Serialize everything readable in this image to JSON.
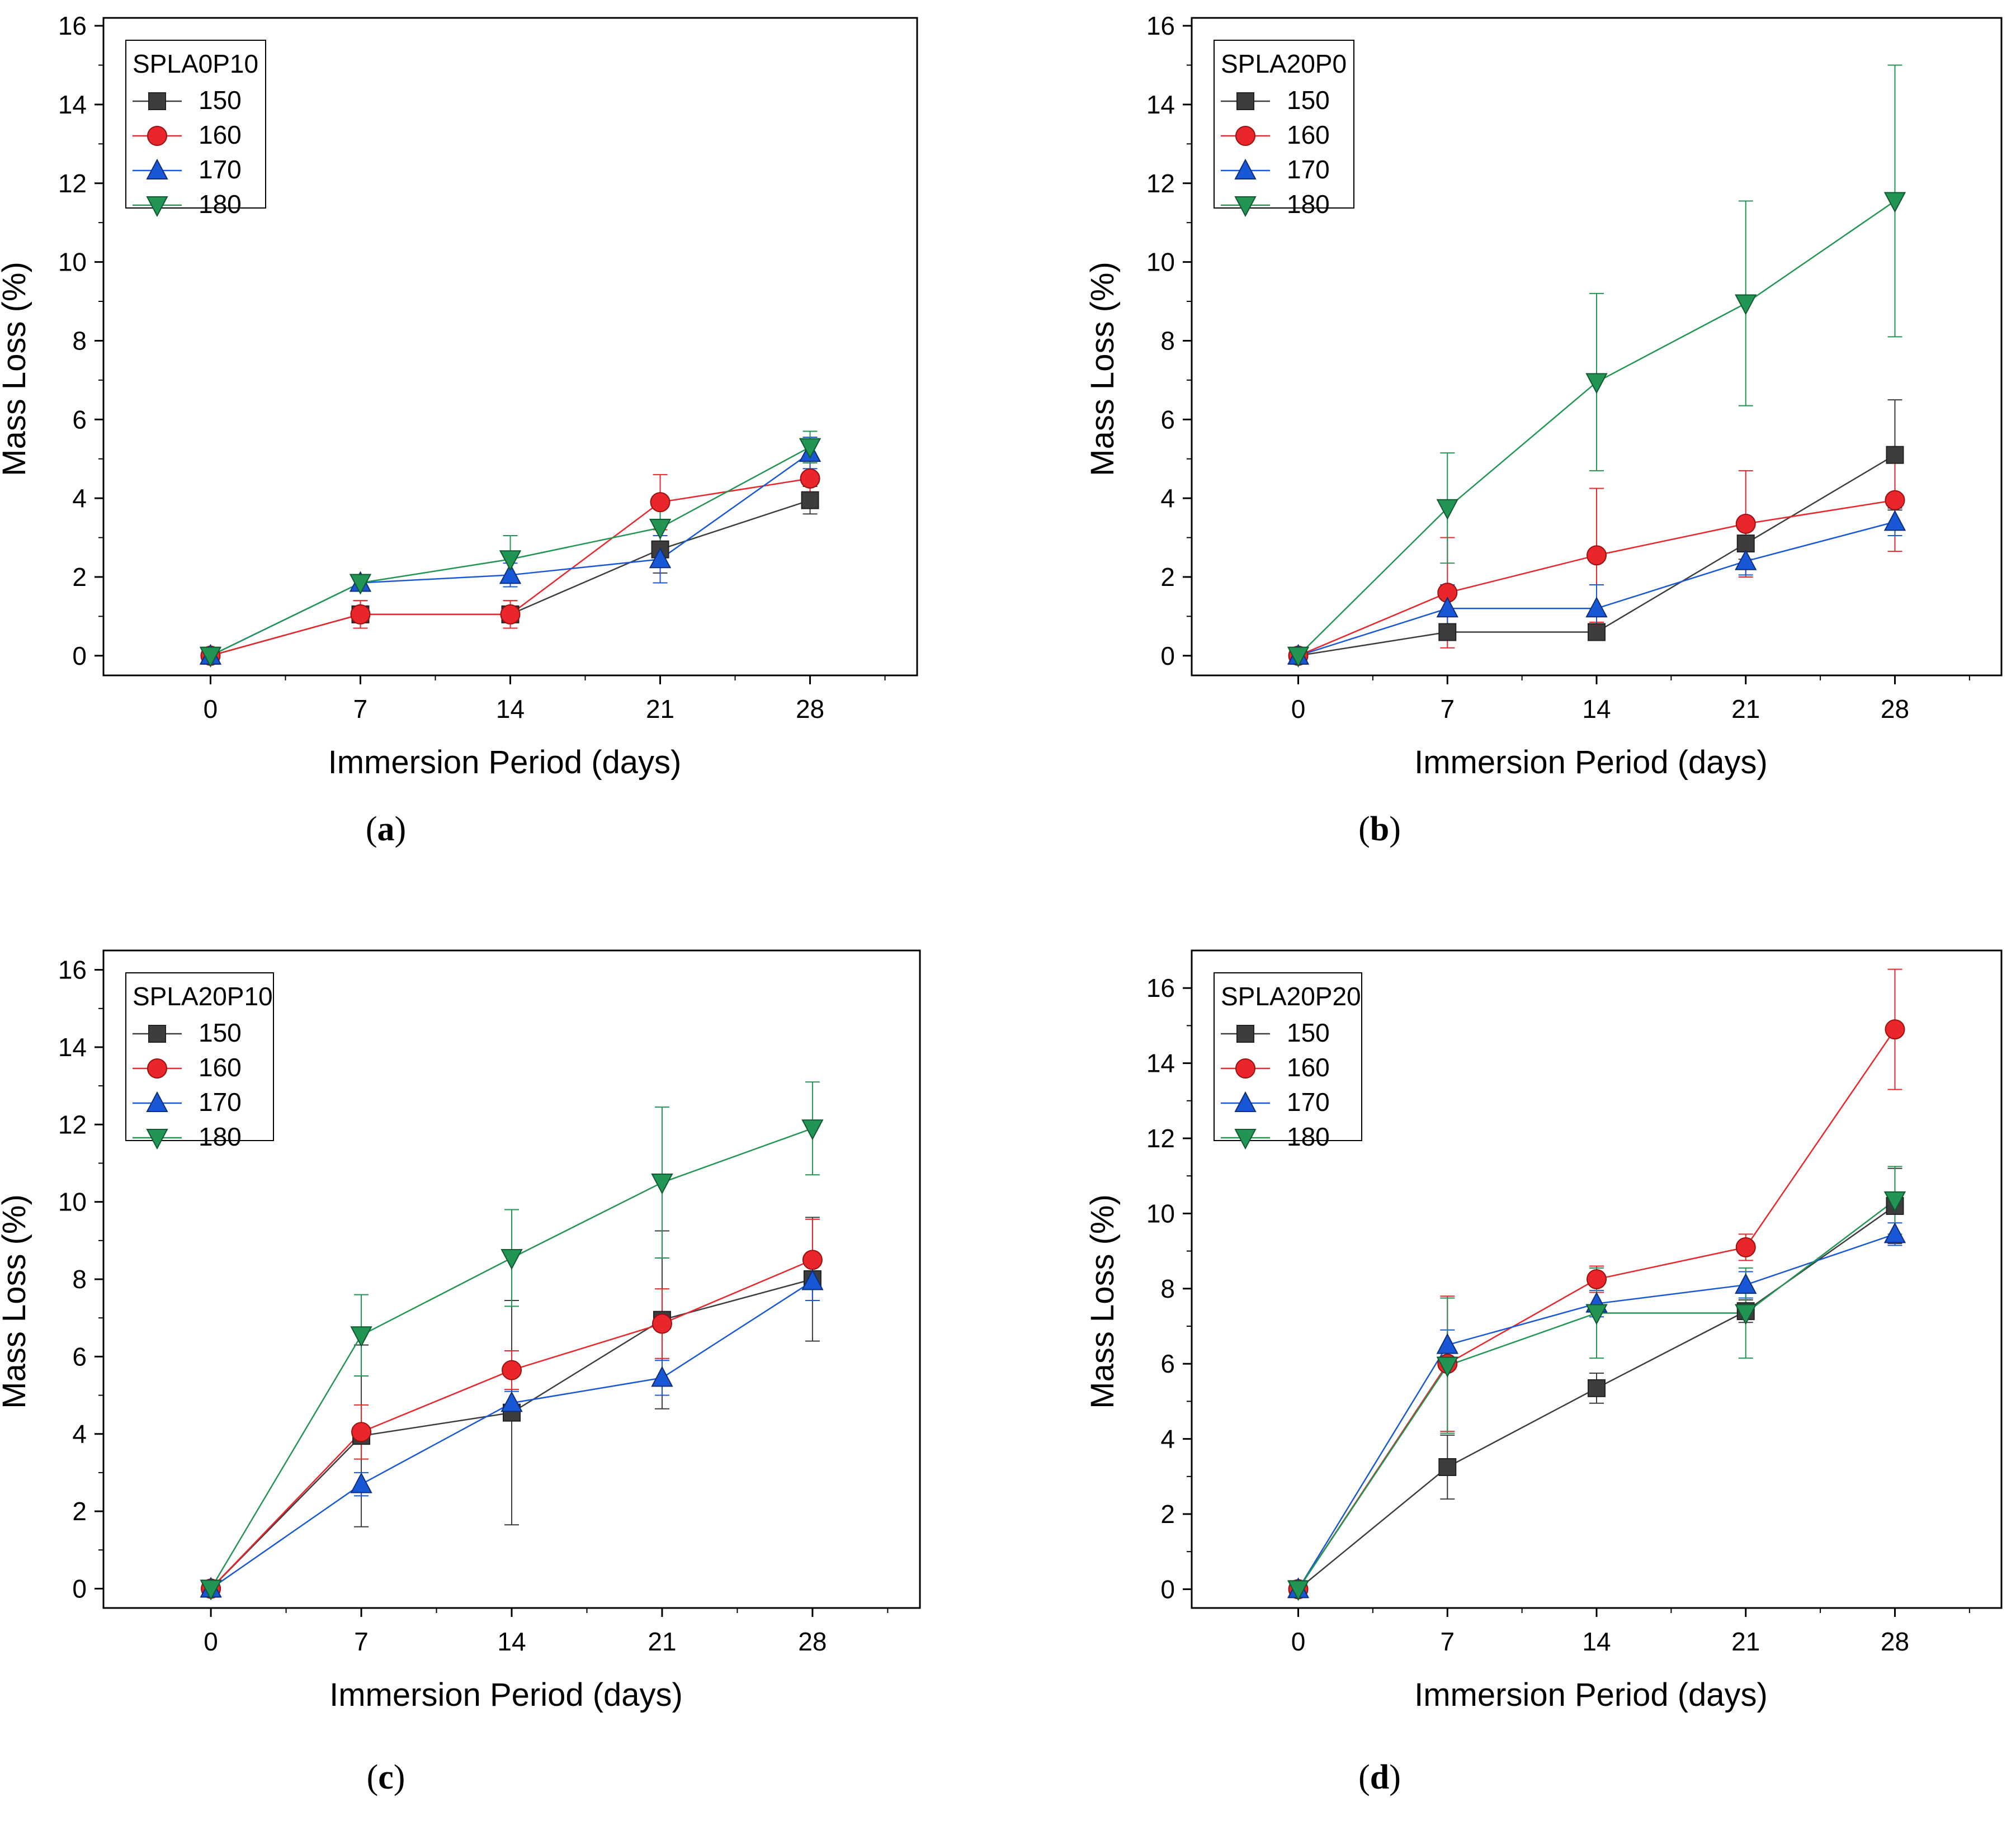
{
  "chart_data": [
    {
      "type": "line",
      "panel": "a",
      "caption": "a",
      "legend_title": "SPLA0P10",
      "xlabel": "Immersion Period (days)",
      "ylabel": "Mass Loss (%)",
      "xlim": [
        -5,
        33
      ],
      "ylim": [
        -0.5,
        16.2
      ],
      "x_ticks": [
        0,
        7,
        14,
        21,
        28
      ],
      "y_ticks": [
        0,
        2,
        4,
        6,
        8,
        10,
        12,
        14,
        16
      ],
      "x": [
        0,
        7,
        14,
        21,
        28
      ],
      "legend_position": "top-left",
      "series": [
        {
          "name": "150",
          "color": "#3d3d3d",
          "marker": "square",
          "values": [
            0,
            1.05,
            1.05,
            2.7,
            3.95
          ],
          "errors": [
            0,
            0.35,
            0.35,
            0.6,
            0.35
          ]
        },
        {
          "name": "160",
          "color": "#e8262b",
          "marker": "circle",
          "values": [
            0,
            1.05,
            1.05,
            3.9,
            4.5
          ],
          "errors": [
            0,
            0.35,
            0.35,
            0.7,
            0.4
          ]
        },
        {
          "name": "170",
          "color": "#1857d6",
          "marker": "triangle-up",
          "values": [
            0,
            1.85,
            2.05,
            2.45,
            5.15
          ],
          "errors": [
            0,
            0.2,
            0.3,
            0.6,
            0.4
          ]
        },
        {
          "name": "180",
          "color": "#229554",
          "marker": "triangle-down",
          "values": [
            0,
            1.85,
            2.45,
            3.25,
            5.3
          ],
          "errors": [
            0,
            0.2,
            0.6,
            0.6,
            0.4
          ]
        }
      ]
    },
    {
      "type": "line",
      "panel": "b",
      "caption": "b",
      "legend_title": "SPLA20P0",
      "xlabel": "Immersion Period (days)",
      "ylabel": "Mass Loss (%)",
      "xlim": [
        -5,
        33
      ],
      "ylim": [
        -0.5,
        16.2
      ],
      "x_ticks": [
        0,
        7,
        14,
        21,
        28
      ],
      "y_ticks": [
        0,
        2,
        4,
        6,
        8,
        10,
        12,
        14,
        16
      ],
      "x": [
        0,
        7,
        14,
        21,
        28
      ],
      "legend_position": "top-left",
      "series": [
        {
          "name": "150",
          "color": "#3d3d3d",
          "marker": "square",
          "values": [
            0,
            0.6,
            0.6,
            2.85,
            5.1
          ],
          "errors": [
            0,
            0.2,
            0.2,
            0.4,
            1.4
          ]
        },
        {
          "name": "160",
          "color": "#e8262b",
          "marker": "circle",
          "values": [
            0,
            1.6,
            2.55,
            3.35,
            3.95
          ],
          "errors": [
            0,
            1.4,
            1.7,
            1.35,
            1.3
          ]
        },
        {
          "name": "170",
          "color": "#1857d6",
          "marker": "triangle-up",
          "values": [
            0,
            1.2,
            1.2,
            2.4,
            3.4
          ],
          "errors": [
            0,
            0.6,
            0.6,
            0.35,
            0.35
          ]
        },
        {
          "name": "180",
          "color": "#229554",
          "marker": "triangle-down",
          "values": [
            0,
            3.75,
            6.95,
            8.95,
            11.55
          ],
          "errors": [
            0,
            1.4,
            2.25,
            2.6,
            3.45
          ]
        }
      ]
    },
    {
      "type": "line",
      "panel": "c",
      "caption": "c",
      "legend_title": "SPLA20P10",
      "xlabel": "Immersion Period (days)",
      "ylabel": "Mass Loss (%)",
      "xlim": [
        -5,
        33
      ],
      "ylim": [
        -0.5,
        16.5
      ],
      "x_ticks": [
        0,
        7,
        14,
        21,
        28
      ],
      "y_ticks": [
        0,
        2,
        4,
        6,
        8,
        10,
        12,
        14,
        16
      ],
      "x": [
        0,
        7,
        14,
        21,
        28
      ],
      "legend_position": "top-left",
      "series": [
        {
          "name": "150",
          "color": "#3d3d3d",
          "marker": "square",
          "values": [
            0,
            3.95,
            4.55,
            6.95,
            8.0
          ],
          "errors": [
            0,
            2.35,
            2.9,
            2.3,
            1.6
          ]
        },
        {
          "name": "160",
          "color": "#e8262b",
          "marker": "circle",
          "values": [
            0,
            4.05,
            5.65,
            6.85,
            8.5
          ],
          "errors": [
            0,
            0.7,
            0.5,
            0.9,
            1.05
          ]
        },
        {
          "name": "170",
          "color": "#1857d6",
          "marker": "triangle-up",
          "values": [
            0,
            2.7,
            4.8,
            5.45,
            7.95
          ],
          "errors": [
            0,
            0.3,
            0.3,
            0.45,
            0.5
          ]
        },
        {
          "name": "180",
          "color": "#229554",
          "marker": "triangle-down",
          "values": [
            0,
            6.55,
            8.55,
            10.5,
            11.9
          ],
          "errors": [
            0,
            1.05,
            1.25,
            1.95,
            1.2
          ]
        }
      ]
    },
    {
      "type": "line",
      "panel": "d",
      "caption": "d",
      "legend_title": "SPLA20P20",
      "xlabel": "Immersion Period (days)",
      "ylabel": "Mass Loss (%)",
      "xlim": [
        -5,
        33
      ],
      "ylim": [
        -0.5,
        17.0
      ],
      "x_ticks": [
        0,
        7,
        14,
        21,
        28
      ],
      "y_ticks": [
        0,
        2,
        4,
        6,
        8,
        10,
        12,
        14,
        16
      ],
      "x": [
        0,
        7,
        14,
        21,
        28
      ],
      "legend_position": "top-left",
      "series": [
        {
          "name": "150",
          "color": "#3d3d3d",
          "marker": "square",
          "values": [
            0,
            3.25,
            5.35,
            7.4,
            10.2
          ],
          "errors": [
            0,
            0.85,
            0.4,
            0.3,
            1.0
          ]
        },
        {
          "name": "160",
          "color": "#e8262b",
          "marker": "circle",
          "values": [
            0,
            6.0,
            8.25,
            9.1,
            14.9
          ],
          "errors": [
            0,
            1.8,
            0.35,
            0.35,
            1.6
          ]
        },
        {
          "name": "170",
          "color": "#1857d6",
          "marker": "triangle-up",
          "values": [
            0,
            6.5,
            7.6,
            8.1,
            9.45
          ],
          "errors": [
            0,
            0.4,
            0.35,
            0.35,
            0.3
          ]
        },
        {
          "name": "180",
          "color": "#229554",
          "marker": "triangle-down",
          "values": [
            0,
            5.95,
            7.35,
            7.35,
            10.35
          ],
          "errors": [
            0,
            1.8,
            1.2,
            1.2,
            0.9
          ]
        }
      ]
    }
  ]
}
